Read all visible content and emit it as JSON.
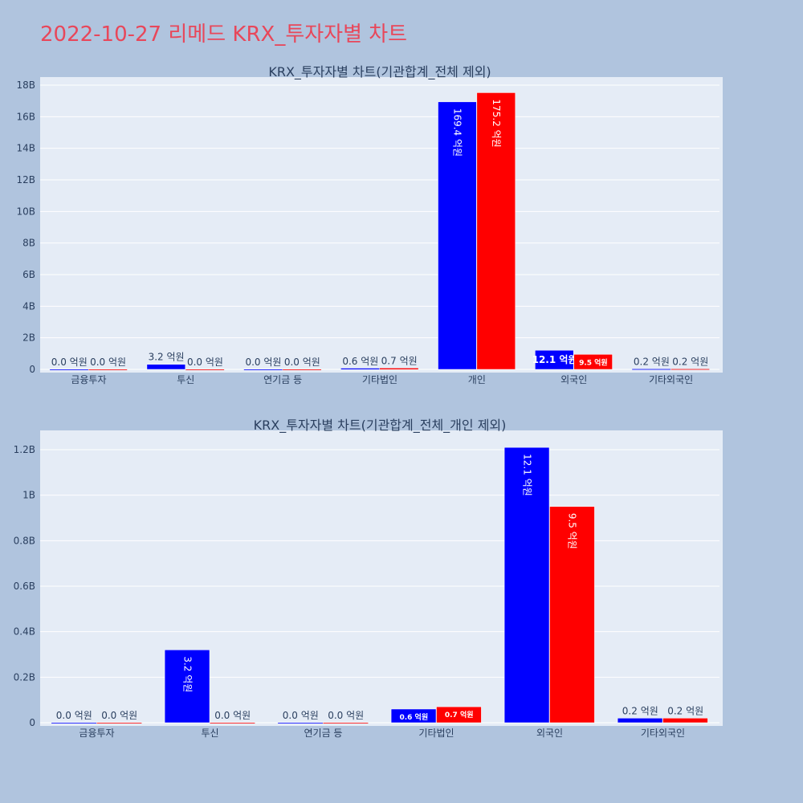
{
  "page_title": "2022-10-27 리메드 KRX_투자자별 차트",
  "colors": {
    "page_background": "#b0c4de",
    "plot_background": "#e5ecf6",
    "grid": "#ffffff",
    "title": "#e8475a",
    "text": "#2a3f5f",
    "series_1": "#0000ff",
    "series_2": "#ff0000"
  },
  "chart_data": [
    {
      "type": "bar",
      "title": "KRX_투자자별 차트(기관합계_전체 제외)",
      "categories": [
        "금융투자",
        "투신",
        "연기금 등",
        "기타법인",
        "개인",
        "외국인",
        "기타외국인"
      ],
      "series": [
        {
          "color": "#0000ff",
          "values": [
            0.0,
            0.32,
            0.0,
            0.06,
            16.94,
            1.21,
            0.02
          ],
          "labels": [
            "0.0 억원",
            "3.2 억원",
            "0.0 억원",
            "0.6 억원",
            "169.4 억원",
            "12.1 억원",
            "0.2 억원"
          ]
        },
        {
          "color": "#ff0000",
          "values": [
            0.0,
            0.0,
            0.0,
            0.07,
            17.52,
            0.95,
            0.02
          ],
          "labels": [
            "0.0 억원",
            "0.0 억원",
            "0.0 억원",
            "0.7 억원",
            "175.2 억원",
            "9.5 억원",
            "0.2 억원"
          ]
        }
      ],
      "y_unit": "billions",
      "ylim": [
        0,
        18.2
      ],
      "y_ticks": [
        0,
        2,
        4,
        6,
        8,
        10,
        12,
        14,
        16,
        18
      ],
      "y_tick_labels": [
        "0",
        "2B",
        "4B",
        "6B",
        "8B",
        "10B",
        "12B",
        "14B",
        "16B",
        "18B"
      ],
      "grid": true
    },
    {
      "type": "bar",
      "title": "KRX_투자자별 차트(기관합계_전체_개인 제외)",
      "categories": [
        "금융투자",
        "투신",
        "연기금 등",
        "기타법인",
        "외국인",
        "기타외국인"
      ],
      "series": [
        {
          "color": "#0000ff",
          "values": [
            0.0,
            0.32,
            0.0,
            0.06,
            1.21,
            0.02
          ],
          "labels": [
            "0.0 억원",
            "3.2 억원",
            "0.0 억원",
            "0.6 억원",
            "12.1 억원",
            "0.2 억원"
          ]
        },
        {
          "color": "#ff0000",
          "values": [
            0.0,
            0.0,
            0.0,
            0.07,
            0.95,
            0.02
          ],
          "labels": [
            "0.0 억원",
            "0.0 억원",
            "0.0 억원",
            "0.7 억원",
            "9.5 억원",
            "0.2 억원"
          ]
        }
      ],
      "y_unit": "billions",
      "ylim": [
        0,
        1.28
      ],
      "y_ticks": [
        0,
        0.2,
        0.4,
        0.6,
        0.8,
        1.0,
        1.2
      ],
      "y_tick_labels": [
        "0",
        "0.2B",
        "0.4B",
        "0.6B",
        "0.8B",
        "1B",
        "1.2B"
      ],
      "grid": true
    }
  ]
}
